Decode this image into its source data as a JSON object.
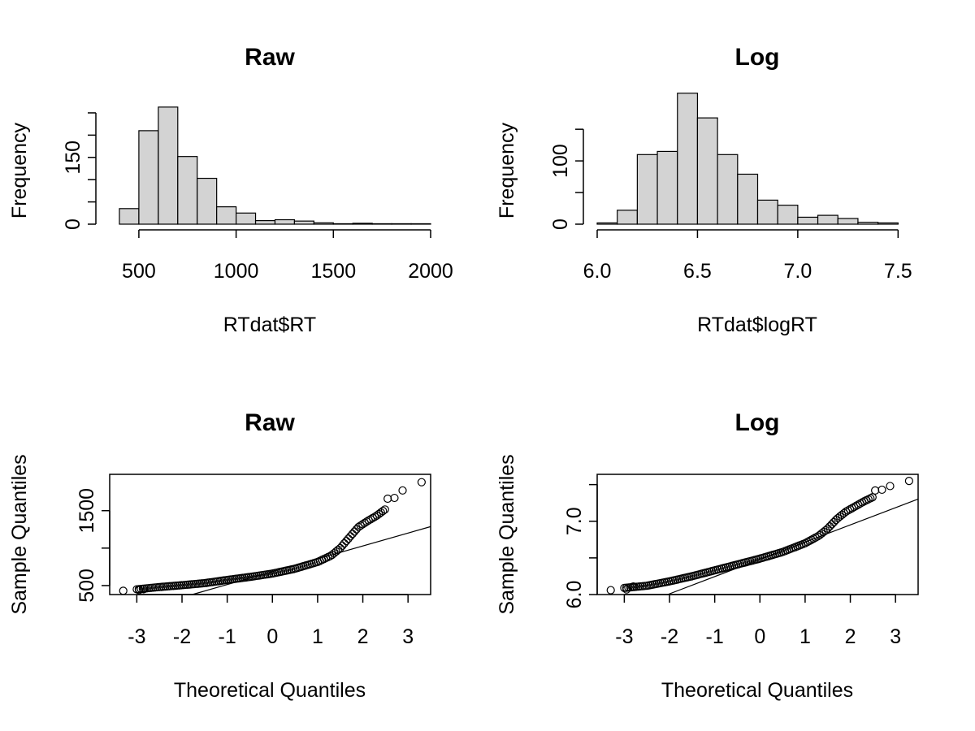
{
  "chart_data": [
    {
      "type": "bar",
      "title": "Raw",
      "xlabel": "RTdat$RT",
      "ylabel": "Frequency",
      "xlim": [
        350,
        2000
      ],
      "ylim": [
        0,
        270
      ],
      "xticks": [
        500,
        1000,
        1500,
        2000
      ],
      "yticks": [
        0,
        50,
        100,
        150,
        200,
        250
      ],
      "ytick_labels": [
        "0",
        "",
        "",
        "150",
        "",
        ""
      ],
      "bins": [
        {
          "x0": 400,
          "x1": 500,
          "count": 35
        },
        {
          "x0": 500,
          "x1": 600,
          "count": 210
        },
        {
          "x0": 600,
          "x1": 700,
          "count": 263
        },
        {
          "x0": 700,
          "x1": 800,
          "count": 152
        },
        {
          "x0": 800,
          "x1": 900,
          "count": 103
        },
        {
          "x0": 900,
          "x1": 1000,
          "count": 39
        },
        {
          "x0": 1000,
          "x1": 1100,
          "count": 25
        },
        {
          "x0": 1100,
          "x1": 1200,
          "count": 8
        },
        {
          "x0": 1200,
          "x1": 1300,
          "count": 10
        },
        {
          "x0": 1300,
          "x1": 1400,
          "count": 7
        },
        {
          "x0": 1400,
          "x1": 1500,
          "count": 3
        },
        {
          "x0": 1500,
          "x1": 1600,
          "count": 1
        },
        {
          "x0": 1600,
          "x1": 1700,
          "count": 2
        },
        {
          "x0": 1700,
          "x1": 1800,
          "count": 1
        },
        {
          "x0": 1800,
          "x1": 1900,
          "count": 1
        },
        {
          "x0": 1900,
          "x1": 2000,
          "count": 1
        }
      ]
    },
    {
      "type": "bar",
      "title": "Log",
      "xlabel": "RTdat$logRT",
      "ylabel": "Frequency",
      "xlim": [
        6.0,
        7.6
      ],
      "ylim": [
        0,
        190
      ],
      "xticks": [
        6.0,
        6.5,
        7.0,
        7.5
      ],
      "xtick_labels": [
        "6.0",
        "6.5",
        "7.0",
        "7.5"
      ],
      "yticks": [
        0,
        50,
        100,
        150
      ],
      "ytick_labels": [
        "0",
        "",
        "100",
        ""
      ],
      "bins": [
        {
          "x0": 6.0,
          "x1": 6.1,
          "count": 2
        },
        {
          "x0": 6.1,
          "x1": 6.2,
          "count": 22
        },
        {
          "x0": 6.2,
          "x1": 6.3,
          "count": 110
        },
        {
          "x0": 6.3,
          "x1": 6.4,
          "count": 115
        },
        {
          "x0": 6.4,
          "x1": 6.5,
          "count": 207
        },
        {
          "x0": 6.5,
          "x1": 6.6,
          "count": 168
        },
        {
          "x0": 6.6,
          "x1": 6.7,
          "count": 110
        },
        {
          "x0": 6.7,
          "x1": 6.8,
          "count": 79
        },
        {
          "x0": 6.8,
          "x1": 6.9,
          "count": 38
        },
        {
          "x0": 6.9,
          "x1": 7.0,
          "count": 30
        },
        {
          "x0": 7.0,
          "x1": 7.1,
          "count": 11
        },
        {
          "x0": 7.1,
          "x1": 7.2,
          "count": 14
        },
        {
          "x0": 7.2,
          "x1": 7.3,
          "count": 9
        },
        {
          "x0": 7.3,
          "x1": 7.4,
          "count": 3
        },
        {
          "x0": 7.4,
          "x1": 7.5,
          "count": 2
        }
      ]
    },
    {
      "type": "scatter",
      "title": "Raw",
      "xlabel": "Theoretical Quantiles",
      "ylabel": "Sample Quantiles",
      "xlim": [
        -3.6,
        3.5
      ],
      "ylim": [
        380,
        1985
      ],
      "xticks": [
        -3,
        -2,
        -1,
        0,
        1,
        2,
        3
      ],
      "yticks": [
        500,
        1000,
        1500
      ],
      "ytick_labels": [
        "500",
        "",
        "1500"
      ],
      "reference_line": {
        "slope": 172,
        "intercept": 685
      },
      "quantile_curve": [
        [
          -3.3,
          428
        ],
        [
          -3.0,
          450
        ],
        [
          -2.5,
          480
        ],
        [
          -2.0,
          505
        ],
        [
          -1.5,
          532
        ],
        [
          -1.0,
          575
        ],
        [
          -0.5,
          615
        ],
        [
          0.0,
          660
        ],
        [
          0.5,
          725
        ],
        [
          1.0,
          815
        ],
        [
          1.3,
          900
        ],
        [
          1.5,
          1000
        ],
        [
          1.7,
          1140
        ],
        [
          1.9,
          1280
        ],
        [
          2.1,
          1360
        ],
        [
          2.3,
          1430
        ],
        [
          2.5,
          1520
        ]
      ],
      "extreme_points": [
        [
          -3.3,
          430
        ],
        [
          -2.95,
          440
        ],
        [
          -2.85,
          450
        ],
        [
          2.55,
          1660
        ],
        [
          2.7,
          1670
        ],
        [
          2.88,
          1770
        ],
        [
          3.3,
          1880
        ]
      ]
    },
    {
      "type": "scatter",
      "title": "Log",
      "xlabel": "Theoretical Quantiles",
      "ylabel": "Sample Quantiles",
      "xlim": [
        -3.6,
        3.5
      ],
      "ylim": [
        6.0,
        7.64
      ],
      "xticks": [
        -3,
        -2,
        -1,
        0,
        1,
        2,
        3
      ],
      "yticks": [
        6.0,
        6.5,
        7.0,
        7.5
      ],
      "ytick_labels": [
        "6.0",
        "",
        "7.0",
        ""
      ],
      "reference_line": {
        "slope": 0.235,
        "intercept": 6.48
      },
      "quantile_curve": [
        [
          -3.3,
          6.06
        ],
        [
          -3.0,
          6.09
        ],
        [
          -2.5,
          6.12
        ],
        [
          -2.0,
          6.18
        ],
        [
          -1.5,
          6.25
        ],
        [
          -1.0,
          6.33
        ],
        [
          -0.5,
          6.41
        ],
        [
          0.0,
          6.49
        ],
        [
          0.5,
          6.58
        ],
        [
          1.0,
          6.7
        ],
        [
          1.3,
          6.8
        ],
        [
          1.5,
          6.9
        ],
        [
          1.7,
          7.03
        ],
        [
          1.9,
          7.13
        ],
        [
          2.1,
          7.2
        ],
        [
          2.3,
          7.27
        ],
        [
          2.5,
          7.33
        ]
      ],
      "extreme_points": [
        [
          -3.3,
          6.06
        ],
        [
          -2.95,
          6.07
        ],
        [
          -2.8,
          6.11
        ],
        [
          2.55,
          7.42
        ],
        [
          2.7,
          7.43
        ],
        [
          2.88,
          7.48
        ],
        [
          3.3,
          7.55
        ]
      ]
    }
  ]
}
